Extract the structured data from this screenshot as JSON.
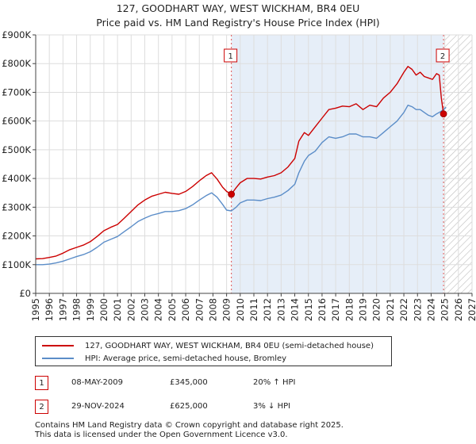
{
  "chart_data": {
    "type": "line",
    "title": "127, GOODHART WAY, WEST WICKHAM, BR4 0EU",
    "subtitle": "Price paid vs. HM Land Registry's House Price Index (HPI)",
    "xlim": [
      1995,
      2027
    ],
    "ylim": [
      0,
      900000
    ],
    "x_ticks": [
      "1995",
      "1996",
      "1997",
      "1998",
      "1999",
      "2000",
      "2001",
      "2002",
      "2003",
      "2004",
      "2005",
      "2006",
      "2007",
      "2008",
      "2009",
      "2010",
      "2011",
      "2012",
      "2013",
      "2014",
      "2015",
      "2016",
      "2017",
      "2018",
      "2019",
      "2020",
      "2021",
      "2022",
      "2023",
      "2024",
      "2025",
      "2026",
      "2027"
    ],
    "y_ticks": [
      {
        "value": 0,
        "label": "£0"
      },
      {
        "value": 100000,
        "label": "£100K"
      },
      {
        "value": 200000,
        "label": "£200K"
      },
      {
        "value": 300000,
        "label": "£300K"
      },
      {
        "value": 400000,
        "label": "£400K"
      },
      {
        "value": 500000,
        "label": "£500K"
      },
      {
        "value": 600000,
        "label": "£600K"
      },
      {
        "value": 700000,
        "label": "£700K"
      },
      {
        "value": 800000,
        "label": "£800K"
      },
      {
        "value": 900000,
        "label": "£900K"
      }
    ],
    "shaded_region": {
      "from": 2009.35,
      "to": 2024.91
    },
    "hatched_region": {
      "from": 2024.91,
      "to": 2027
    },
    "series": [
      {
        "name": "127, GOODHART WAY, WEST WICKHAM, BR4 0EU (semi-detached house)",
        "color": "#cc0000",
        "x": [
          1995,
          1995.5,
          1996,
          1996.5,
          1997,
          1997.5,
          1998,
          1998.5,
          1999,
          1999.5,
          2000,
          2000.5,
          2001,
          2001.5,
          2002,
          2002.5,
          2003,
          2003.5,
          2004,
          2004.5,
          2005,
          2005.5,
          2006,
          2006.5,
          2007,
          2007.5,
          2007.9,
          2008.3,
          2008.7,
          2009,
          2009.35,
          2009.7,
          2010,
          2010.5,
          2011,
          2011.5,
          2012,
          2012.5,
          2013,
          2013.5,
          2014,
          2014.3,
          2014.7,
          2015,
          2015.5,
          2016,
          2016.5,
          2017,
          2017.5,
          2018,
          2018.5,
          2019,
          2019.5,
          2020,
          2020.5,
          2021,
          2021.5,
          2022,
          2022.3,
          2022.6,
          2022.9,
          2023.2,
          2023.5,
          2023.8,
          2024.1,
          2024.4,
          2024.6,
          2024.75,
          2024.91
        ],
        "values": [
          120000,
          121000,
          125000,
          130000,
          140000,
          152000,
          160000,
          168000,
          180000,
          198000,
          218000,
          230000,
          240000,
          262000,
          285000,
          308000,
          325000,
          338000,
          345000,
          352000,
          348000,
          345000,
          355000,
          372000,
          392000,
          410000,
          420000,
          398000,
          370000,
          355000,
          345000,
          368000,
          385000,
          400000,
          400000,
          398000,
          405000,
          410000,
          420000,
          440000,
          470000,
          530000,
          560000,
          550000,
          580000,
          610000,
          640000,
          645000,
          652000,
          650000,
          660000,
          640000,
          655000,
          650000,
          680000,
          700000,
          730000,
          770000,
          790000,
          780000,
          760000,
          770000,
          755000,
          750000,
          745000,
          765000,
          760000,
          680000,
          625000
        ]
      },
      {
        "name": "HPI: Average price, semi-detached house, Bromley",
        "color": "#5b8dc8",
        "x": [
          1995,
          1995.5,
          1996,
          1996.5,
          1997,
          1997.5,
          1998,
          1998.5,
          1999,
          1999.5,
          2000,
          2000.5,
          2001,
          2001.5,
          2002,
          2002.5,
          2003,
          2003.5,
          2004,
          2004.5,
          2005,
          2005.5,
          2006,
          2006.5,
          2007,
          2007.5,
          2007.9,
          2008.3,
          2008.7,
          2009,
          2009.35,
          2009.7,
          2010,
          2010.5,
          2011,
          2011.5,
          2012,
          2012.5,
          2013,
          2013.5,
          2014,
          2014.3,
          2014.7,
          2015,
          2015.5,
          2016,
          2016.5,
          2017,
          2017.5,
          2018,
          2018.5,
          2019,
          2019.5,
          2020,
          2020.5,
          2021,
          2021.5,
          2022,
          2022.3,
          2022.6,
          2022.9,
          2023.2,
          2023.5,
          2023.8,
          2024.1,
          2024.4,
          2024.6,
          2024.91,
          2025.1
        ],
        "values": [
          100000,
          100000,
          102000,
          106000,
          112000,
          120000,
          128000,
          135000,
          145000,
          160000,
          178000,
          188000,
          198000,
          215000,
          232000,
          250000,
          262000,
          272000,
          278000,
          285000,
          285000,
          288000,
          295000,
          308000,
          325000,
          340000,
          350000,
          335000,
          310000,
          290000,
          287000,
          300000,
          315000,
          325000,
          325000,
          323000,
          330000,
          335000,
          342000,
          358000,
          380000,
          420000,
          460000,
          480000,
          495000,
          525000,
          545000,
          540000,
          545000,
          555000,
          555000,
          545000,
          545000,
          540000,
          560000,
          580000,
          600000,
          630000,
          655000,
          650000,
          640000,
          640000,
          630000,
          620000,
          615000,
          625000,
          630000,
          640000,
          648000
        ]
      }
    ],
    "sales": [
      {
        "label": "1",
        "x": 2009.35,
        "price": 345000
      },
      {
        "label": "2",
        "x": 2024.91,
        "price": 625000
      }
    ]
  },
  "legend": {
    "items": [
      {
        "label": "127, GOODHART WAY, WEST WICKHAM, BR4 0EU (semi-detached house)",
        "color": "#cc0000"
      },
      {
        "label": "HPI: Average price, semi-detached house, Bromley",
        "color": "#5b8dc8"
      }
    ]
  },
  "transactions": [
    {
      "badge": "1",
      "date": "08-MAY-2009",
      "price": "£345,000",
      "hpi": "20% ↑ HPI"
    },
    {
      "badge": "2",
      "date": "29-NOV-2024",
      "price": "£625,000",
      "hpi": "3% ↓ HPI"
    }
  ],
  "footer": {
    "line1": "Contains HM Land Registry data © Crown copyright and database right 2025.",
    "line2": "This data is licensed under the Open Government Licence v3.0."
  }
}
